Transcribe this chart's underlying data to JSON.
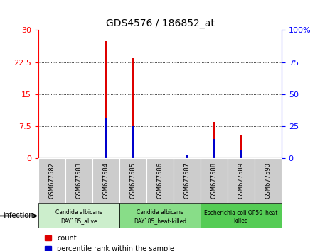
{
  "title": "GDS4576 / 186852_at",
  "samples": [
    "GSM677582",
    "GSM677583",
    "GSM677584",
    "GSM677585",
    "GSM677586",
    "GSM677587",
    "GSM677588",
    "GSM677589",
    "GSM677590"
  ],
  "count_values": [
    0,
    0,
    27.5,
    23.5,
    0,
    0.3,
    8.5,
    5.5,
    0
  ],
  "percentile_values": [
    0,
    0,
    9.5,
    7.5,
    0,
    0.8,
    4.5,
    2.0,
    0
  ],
  "left_ylim": [
    0,
    30
  ],
  "right_ylim": [
    0,
    100
  ],
  "left_yticks": [
    0,
    7.5,
    15,
    22.5,
    30
  ],
  "right_yticks": [
    0,
    25,
    50,
    75,
    100
  ],
  "left_yticklabels": [
    "0",
    "7.5",
    "15",
    "22.5",
    "30"
  ],
  "right_yticklabels": [
    "0",
    "25",
    "50",
    "75",
    "100%"
  ],
  "bar_color_red": "#dd0000",
  "bar_color_blue": "#0000cc",
  "bar_width": 0.12,
  "groups": [
    {
      "label": "Candida albicans\nDAY185_alive",
      "start": 0,
      "end": 3,
      "color": "#cceecc"
    },
    {
      "label": "Candida albicans\nDAY185_heat-killed",
      "start": 3,
      "end": 6,
      "color": "#88dd88"
    },
    {
      "label": "Escherichia coli OP50_heat\nkilled",
      "start": 6,
      "end": 9,
      "color": "#55cc55"
    }
  ],
  "infection_label": "infection",
  "legend_items": [
    {
      "color": "#dd0000",
      "label": "count"
    },
    {
      "color": "#0000cc",
      "label": "percentile rank within the sample"
    }
  ],
  "bg_color": "#ffffff",
  "tick_area_color": "#cccccc",
  "sample_label_fontsize": 6,
  "group_label_fontsize": 5.5,
  "title_fontsize": 10,
  "ytick_fontsize": 8,
  "legend_fontsize": 7
}
